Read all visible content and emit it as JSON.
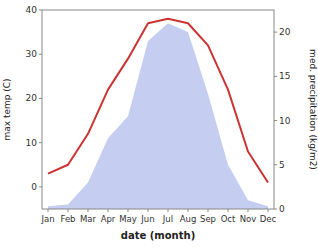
{
  "chart_data": {
    "type": "line",
    "categories": [
      "Jan",
      "Feb",
      "Mar",
      "Apr",
      "May",
      "Jun",
      "Jul",
      "Aug",
      "Sep",
      "Oct",
      "Nov",
      "Dec"
    ],
    "xlabel": "date (month)",
    "ylabel": "max temp (C)",
    "y2label": "med. precipitation (kg/m2)",
    "series": [
      {
        "type": "area",
        "axis": "y2",
        "color": "#c5cdf0",
        "values": [
          0.3,
          0.5,
          3.0,
          8.0,
          10.5,
          19.0,
          21.0,
          20.0,
          13.0,
          5.0,
          1.0,
          0.3
        ]
      },
      {
        "type": "line",
        "color": "#cc3333",
        "values": [
          3,
          5,
          12,
          22,
          29,
          37,
          38,
          37,
          32,
          22,
          8,
          1
        ]
      }
    ],
    "ylim": [
      -5,
      40
    ],
    "yticks": [
      0,
      10,
      20,
      30,
      40
    ],
    "y2lim": [
      0,
      22.5
    ],
    "y2ticks": [
      0,
      5,
      10,
      15,
      20
    ],
    "grid": false
  }
}
